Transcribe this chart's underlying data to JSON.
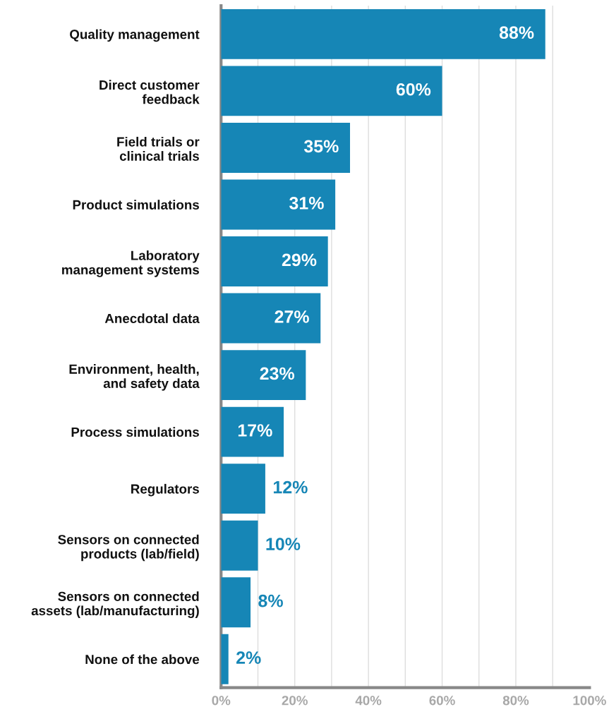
{
  "chart_data": {
    "type": "bar",
    "orientation": "horizontal",
    "categories": [
      "Quality management",
      "Direct customer\nfeedback",
      "Field trials or\nclinical trials",
      "Product simulations",
      "Laboratory\nmanagement systems",
      "Anecdotal data",
      "Environment, health,\nand safety data",
      "Process simulations",
      "Regulators",
      "Sensors on connected\nproducts (lab/field)",
      "Sensors on connected\nassets (lab/manufacturing)",
      "None of the above"
    ],
    "values": [
      88,
      60,
      35,
      31,
      29,
      27,
      23,
      17,
      12,
      10,
      8,
      2
    ],
    "value_labels": [
      "88%",
      "60%",
      "35%",
      "31%",
      "29%",
      "27%",
      "23%",
      "17%",
      "12%",
      "10%",
      "8%",
      "2%"
    ],
    "color": "#1686b6",
    "xlim": [
      0,
      100
    ],
    "xticks": [
      {
        "value": 0,
        "label": "0%"
      },
      {
        "value": 20,
        "label": "20%"
      },
      {
        "value": 40,
        "label": "40%"
      },
      {
        "value": 60,
        "label": "60%"
      },
      {
        "value": 80,
        "label": "80%"
      },
      {
        "value": 100,
        "label": "100%"
      }
    ],
    "grid": "x"
  }
}
